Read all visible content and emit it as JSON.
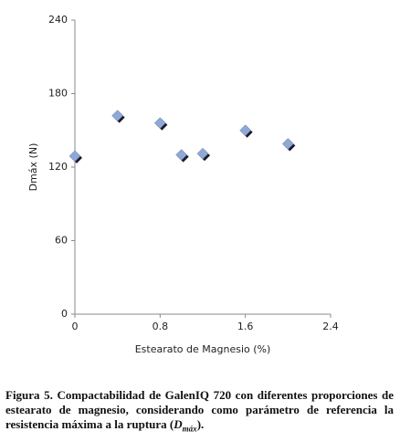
{
  "chart_data": {
    "type": "scatter",
    "x_label": "Estearato de Magnesio  (%)",
    "y_label": "Dmáx (N)",
    "x": [
      0,
      0.4,
      0.8,
      1.0,
      1.2,
      1.6,
      2.0
    ],
    "values": [
      129,
      162,
      156,
      130,
      131,
      150,
      139
    ],
    "color": "#8fa8d8",
    "xlim": [
      0,
      2.4
    ],
    "xticks": [
      0,
      0.8,
      1.6,
      2.4
    ],
    "ylim": [
      0,
      240
    ],
    "yticks": [
      0,
      60,
      120,
      180,
      240
    ],
    "grid": false
  },
  "caption": {
    "text": "Figura 5. Compactabilidad de GalenIQ 720 con diferentes proporciones de estearato de magnesio, considerando como parámetro de referencia la resistencia máxima a la ruptura (",
    "symbol": "D",
    "subscript": "máx",
    "end": ")."
  }
}
